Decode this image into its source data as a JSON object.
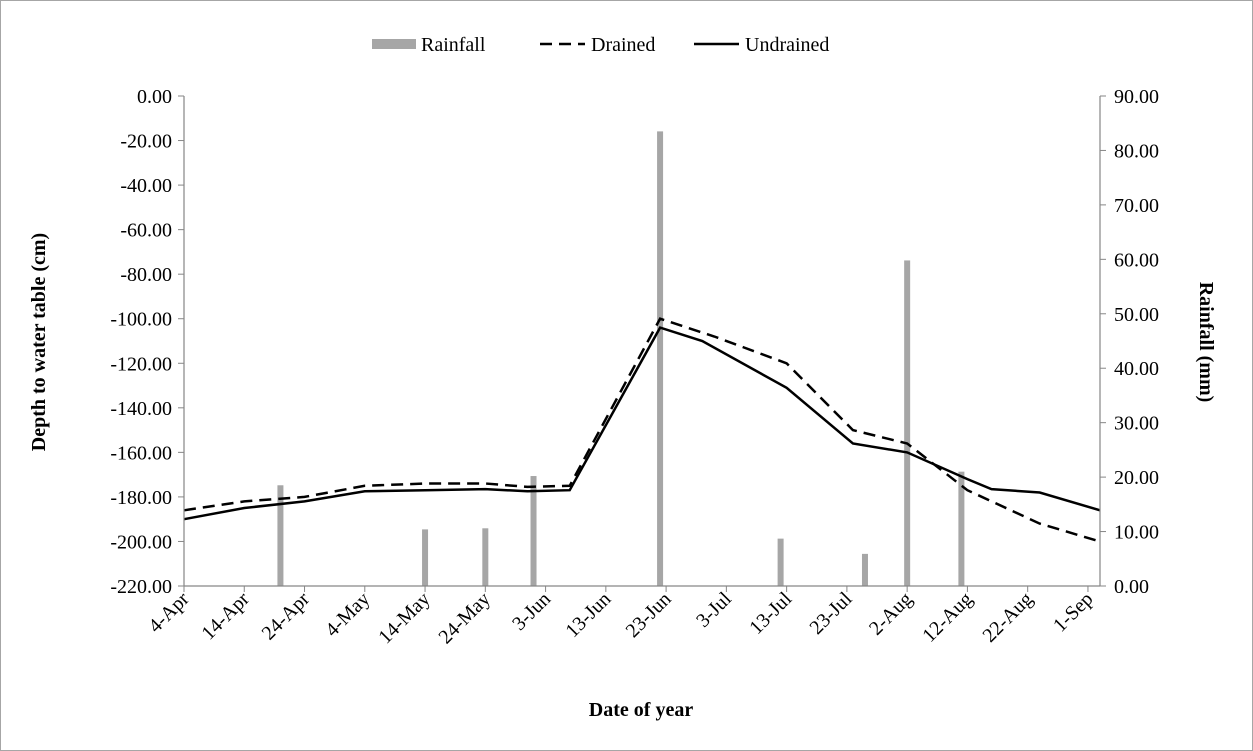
{
  "chart_data": {
    "type": "line",
    "xlabel": "Date of year",
    "ylabel": "Depth to water table (cm)",
    "y2label": "Rainfall (mm)",
    "x_ticks": [
      "4-Apr",
      "14-Apr",
      "24-Apr",
      "4-May",
      "14-May",
      "24-May",
      "3-Jun",
      "13-Jun",
      "23-Jun",
      "3-Jul",
      "13-Jul",
      "23-Jul",
      "2-Aug",
      "12-Aug",
      "22-Aug",
      "1-Sep"
    ],
    "y_ticks": [
      "0.00",
      "-20.00",
      "-40.00",
      "-60.00",
      "-80.00",
      "-100.00",
      "-120.00",
      "-140.00",
      "-160.00",
      "-180.00",
      "-200.00",
      "-220.00"
    ],
    "y2_ticks": [
      "0.00",
      "10.00",
      "20.00",
      "30.00",
      "40.00",
      "50.00",
      "60.00",
      "70.00",
      "80.00",
      "90.00"
    ],
    "ylim": [
      -220,
      0
    ],
    "y2lim": [
      0,
      90
    ],
    "x_range_days": [
      "2017-04-04",
      "2017-09-03"
    ],
    "legend_position": "top",
    "grid": false,
    "series": [
      {
        "name": "Rainfall",
        "kind": "bar",
        "axis": "right",
        "color": "#a6a6a6",
        "points": [
          [
            "2017-04-20",
            18.5
          ],
          [
            "2017-05-14",
            10.4
          ],
          [
            "2017-05-24",
            10.6
          ],
          [
            "2017-06-01",
            20.2
          ],
          [
            "2017-06-22",
            83.5
          ],
          [
            "2017-07-12",
            8.7
          ],
          [
            "2017-07-26",
            5.9
          ],
          [
            "2017-08-02",
            59.8
          ],
          [
            "2017-08-11",
            21.0
          ]
        ]
      },
      {
        "name": "Drained",
        "kind": "line",
        "axis": "left",
        "style": "dashed",
        "color": "#000000",
        "points": [
          [
            "2017-04-04",
            -186
          ],
          [
            "2017-04-14",
            -182
          ],
          [
            "2017-04-24",
            -180
          ],
          [
            "2017-05-04",
            -175
          ],
          [
            "2017-05-14",
            -174
          ],
          [
            "2017-05-24",
            -174
          ],
          [
            "2017-05-31",
            -175.5
          ],
          [
            "2017-06-07",
            -175
          ],
          [
            "2017-06-22",
            -100
          ],
          [
            "2017-07-01",
            -108
          ],
          [
            "2017-07-13",
            -120
          ],
          [
            "2017-07-24",
            -150
          ],
          [
            "2017-08-02",
            -156
          ],
          [
            "2017-08-12",
            -177
          ],
          [
            "2017-08-24",
            -192
          ],
          [
            "2017-09-03",
            -200
          ]
        ]
      },
      {
        "name": "Undrained",
        "kind": "line",
        "axis": "left",
        "style": "solid",
        "color": "#000000",
        "points": [
          [
            "2017-04-04",
            -190
          ],
          [
            "2017-04-14",
            -185
          ],
          [
            "2017-04-24",
            -182
          ],
          [
            "2017-05-04",
            -177.5
          ],
          [
            "2017-05-14",
            -177
          ],
          [
            "2017-05-24",
            -176.5
          ],
          [
            "2017-05-31",
            -177.5
          ],
          [
            "2017-06-07",
            -177
          ],
          [
            "2017-06-22",
            -104
          ],
          [
            "2017-06-29",
            -110
          ],
          [
            "2017-07-13",
            -131
          ],
          [
            "2017-07-24",
            -156
          ],
          [
            "2017-08-02",
            -160
          ],
          [
            "2017-08-12",
            -172
          ],
          [
            "2017-08-16",
            -176.5
          ],
          [
            "2017-08-24",
            -178
          ],
          [
            "2017-09-03",
            -186
          ]
        ]
      }
    ]
  }
}
